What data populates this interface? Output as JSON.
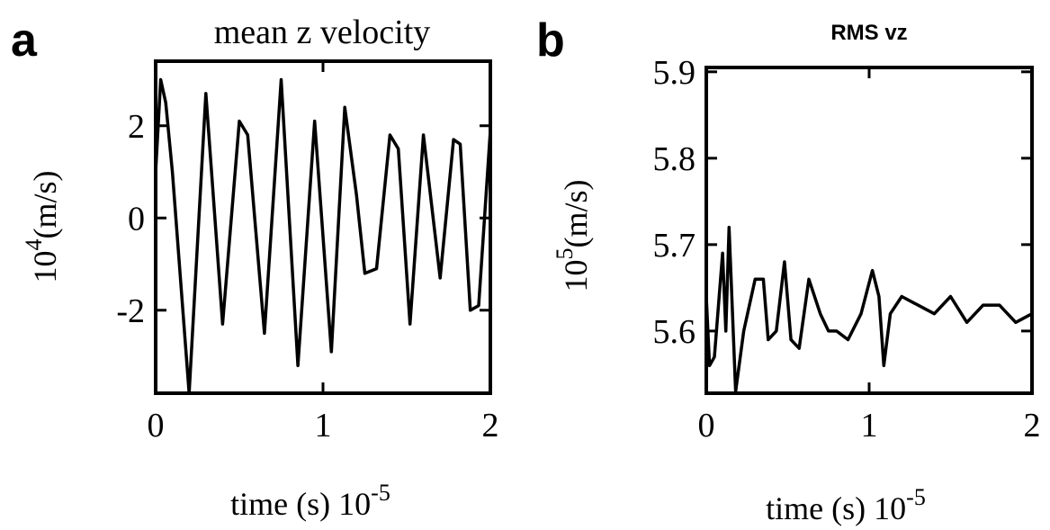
{
  "chart_data": [
    {
      "type": "line",
      "panel_label": "a",
      "title": "mean z velocity",
      "y_label": {
        "base": "10",
        "exponent": "4",
        "unit": "(m/s)"
      },
      "x_label": {
        "text": "time (s) 10",
        "exponent": "-5"
      },
      "x": [
        0,
        0.03,
        0.06,
        0.1,
        0.2,
        0.3,
        0.4,
        0.5,
        0.55,
        0.65,
        0.75,
        0.85,
        0.95,
        1.05,
        1.13,
        1.2,
        1.25,
        1.32,
        1.4,
        1.45,
        1.52,
        1.6,
        1.7,
        1.78,
        1.82,
        1.88,
        1.93,
        2.0
      ],
      "values": [
        1.0,
        3.0,
        2.5,
        1.0,
        -3.8,
        2.7,
        -2.3,
        2.1,
        1.8,
        -2.5,
        3.0,
        -3.2,
        2.1,
        -2.9,
        2.4,
        0.5,
        -1.2,
        -1.1,
        1.8,
        1.5,
        -2.3,
        1.8,
        -1.3,
        1.7,
        1.6,
        -2.0,
        -1.9,
        1.9
      ],
      "color": "#000000",
      "xlim": [
        0,
        2
      ],
      "xticks": [
        0,
        1,
        2
      ],
      "ylim": [
        -3.8,
        3.4
      ],
      "yticks": [
        -2,
        0,
        2
      ]
    },
    {
      "type": "line",
      "panel_label": "b",
      "title": "RMS vz",
      "y_label": {
        "base": "10",
        "exponent": "5",
        "unit": "(m/s)"
      },
      "x_label": {
        "text": "time (s) 10",
        "exponent": "-5"
      },
      "x": [
        0,
        0.02,
        0.05,
        0.1,
        0.12,
        0.14,
        0.18,
        0.23,
        0.3,
        0.35,
        0.38,
        0.43,
        0.48,
        0.52,
        0.57,
        0.63,
        0.7,
        0.75,
        0.8,
        0.87,
        0.95,
        1.02,
        1.06,
        1.09,
        1.13,
        1.2,
        1.3,
        1.4,
        1.5,
        1.6,
        1.7,
        1.8,
        1.9,
        2.0
      ],
      "values": [
        5.64,
        5.56,
        5.57,
        5.69,
        5.6,
        5.72,
        5.53,
        5.6,
        5.66,
        5.66,
        5.59,
        5.6,
        5.68,
        5.59,
        5.58,
        5.66,
        5.62,
        5.6,
        5.6,
        5.59,
        5.62,
        5.67,
        5.64,
        5.56,
        5.62,
        5.64,
        5.63,
        5.62,
        5.64,
        5.61,
        5.63,
        5.63,
        5.61,
        5.62
      ],
      "color": "#000000",
      "xlim": [
        0,
        2
      ],
      "xticks": [
        0,
        1,
        2
      ],
      "ylim": [
        5.528,
        5.905
      ],
      "yticks": [
        5.6,
        5.7,
        5.8,
        5.9
      ]
    }
  ]
}
